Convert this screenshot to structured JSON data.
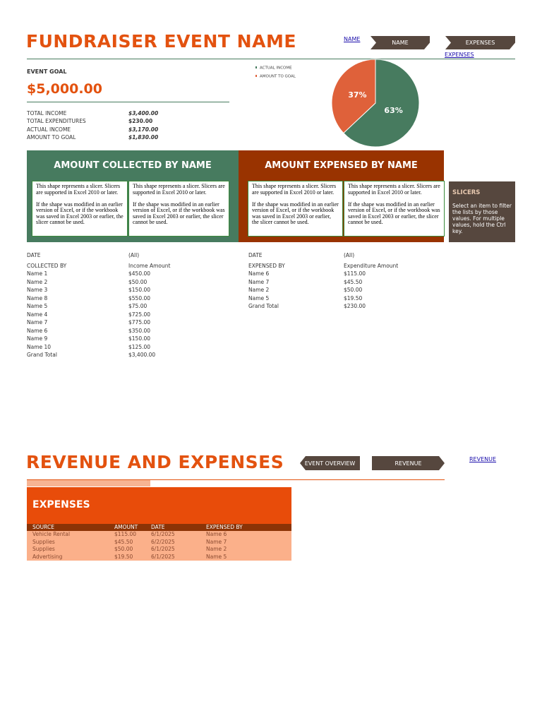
{
  "header": {
    "title": "FUNDRAISER EVENT NAME",
    "links": [
      "NAME",
      "EXPENSES"
    ],
    "buttons": [
      "NAME",
      "EXPENSES"
    ]
  },
  "goal": {
    "label": "EVENT GOAL",
    "amount": "$5,000.00"
  },
  "summary": [
    [
      "TOTAL INCOME",
      "$3,400.00"
    ],
    [
      "TOTAL EXPENDITURES",
      "$230.00"
    ],
    [
      "ACTUAL INCOME",
      "$3,170.00"
    ],
    [
      "AMOUNT TO GOAL",
      "$1,830.00"
    ]
  ],
  "chart_data": {
    "type": "pie",
    "categories": [
      "ACTUAL INCOME",
      "AMOUNT TO GOAL"
    ],
    "values": [
      63,
      37
    ],
    "value_labels": [
      "63%",
      "37%"
    ],
    "colors": [
      "#477b5f",
      "#df613a"
    ]
  },
  "panels": [
    {
      "title": "AMOUNT COLLECTED BY NAME",
      "slicer_note": [
        "This shape represents a slicer. Slicers are supported in Excel 2010 or later.",
        "If the shape was modified in an earlier version of Excel, or if the workbook was saved in Excel 2003 or earlier, the slicer cannot be used."
      ]
    },
    {
      "title": "AMOUNT EXPENSED BY NAME",
      "slicer_note": [
        "This shape represents a slicer. Slicers are supported in Excel 2010 or later.",
        "If the shape was modified in an earlier version of Excel, or if the workbook was saved in Excel 2003 or earlier, the slicer cannot be used."
      ]
    }
  ],
  "slicers_tip": {
    "title": "SLICERS",
    "text": "Select an item to filter the lists by those values. For multiple values, hold the Ctrl key."
  },
  "pivots": [
    {
      "filter": [
        "DATE",
        "(All)"
      ],
      "header": [
        "COLLECTED BY",
        "Income Amount"
      ],
      "rows": [
        [
          "Name 1",
          "$450.00"
        ],
        [
          "Name 2",
          "$50.00"
        ],
        [
          "Name 3",
          "$150.00"
        ],
        [
          "Name 8",
          "$550.00"
        ],
        [
          "Name 5",
          "$75.00"
        ],
        [
          "Name 4",
          "$725.00"
        ],
        [
          "Name 7",
          "$775.00"
        ],
        [
          "Name 6",
          "$350.00"
        ],
        [
          "Name 9",
          "$150.00"
        ],
        [
          "Name 10",
          "$125.00"
        ],
        [
          "Grand Total",
          "$3,400.00"
        ]
      ]
    },
    {
      "filter": [
        "DATE",
        "(All)"
      ],
      "header": [
        "EXPENSED BY",
        "Expenditure Amount"
      ],
      "rows": [
        [
          "Name 6",
          "$115.00"
        ],
        [
          "Name 7",
          "$45.50"
        ],
        [
          "Name 2",
          "$50.00"
        ],
        [
          "Name 5",
          "$19.50"
        ],
        [
          "Grand Total",
          "$230.00"
        ]
      ]
    }
  ],
  "section2": {
    "title": "REVENUE AND EXPENSES",
    "buttons": [
      "EVENT OVERVIEW",
      "REVENUE"
    ],
    "link": "REVENUE"
  },
  "expenses": {
    "title": "EXPENSES",
    "columns": [
      "SOURCE",
      "AMOUNT",
      "DATE",
      "EXPENSED BY"
    ],
    "rows": [
      [
        "Vehicle Rental",
        "$115.00",
        "6/1/2025",
        "Name 6"
      ],
      [
        "Supplies",
        "$45.50",
        "6/2/2025",
        "Name 7"
      ],
      [
        "Supplies",
        "$50.00",
        "6/1/2025",
        "Name 2"
      ],
      [
        "Advertising",
        "$19.50",
        "6/1/2025",
        "Name 5"
      ]
    ]
  }
}
